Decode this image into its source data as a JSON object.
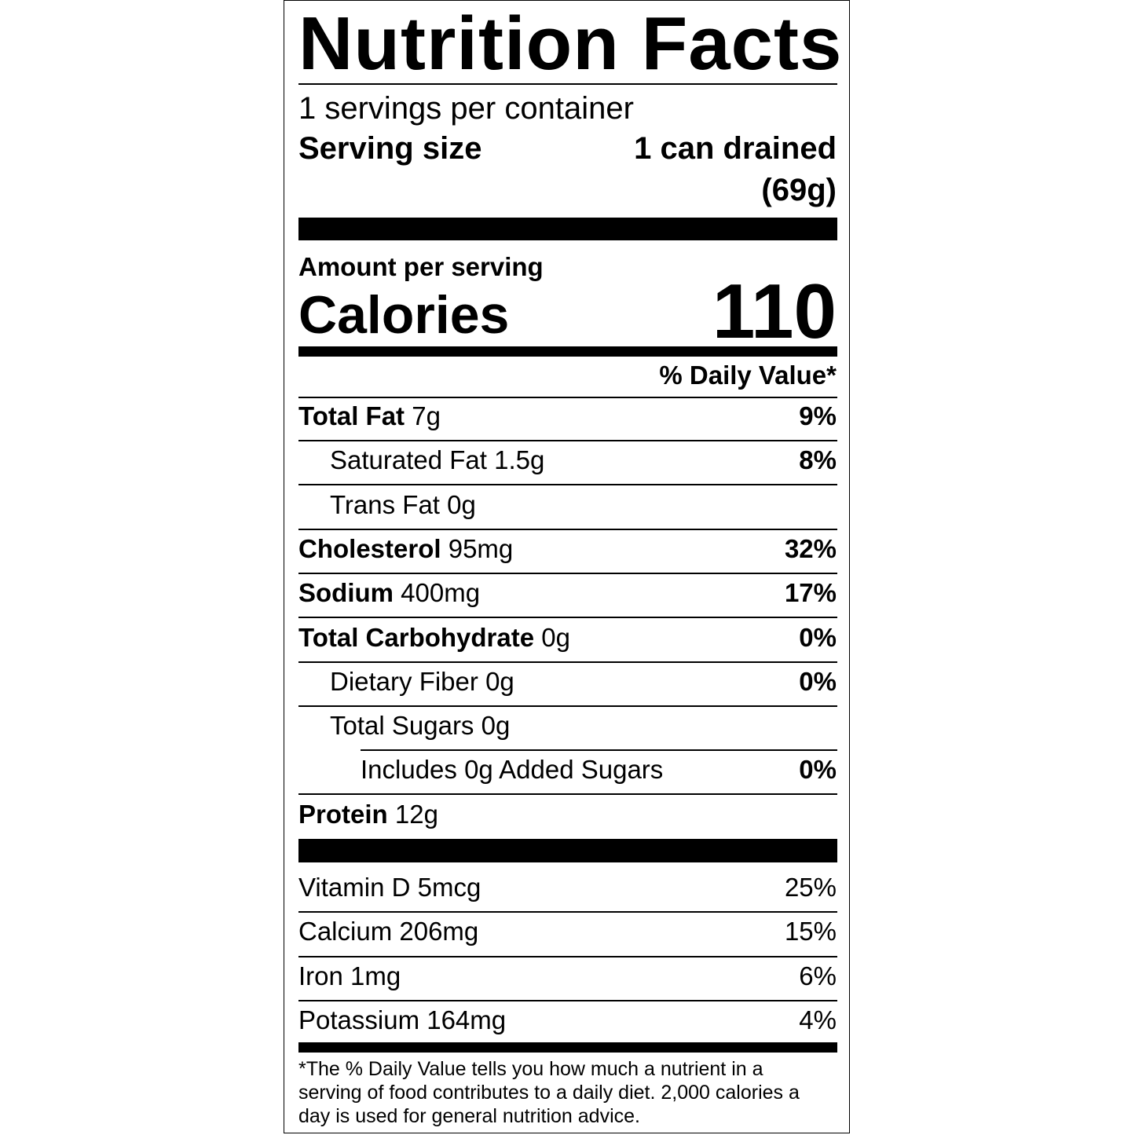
{
  "title": "Nutrition Facts",
  "servings_per_container": "1 servings per container",
  "serving_size": {
    "label": "Serving size",
    "value_line1": "1 can drained",
    "value_line2": "(69g)"
  },
  "amount_per_serving": "Amount per serving",
  "calories": {
    "label": "Calories",
    "value": "110"
  },
  "daily_value_header": "% Daily Value*",
  "nutrients": [
    {
      "name": "Total Fat",
      "amount": "7g",
      "dv": "9%"
    },
    {
      "name": "Saturated Fat",
      "amount": "1.5g",
      "dv": "8%"
    },
    {
      "name": "Trans Fat",
      "amount": "0g",
      "dv": ""
    },
    {
      "name": "Cholesterol",
      "amount": "95mg",
      "dv": "32%"
    },
    {
      "name": "Sodium",
      "amount": "400mg",
      "dv": "17%"
    },
    {
      "name": "Total Carbohydrate",
      "amount": "0g",
      "dv": "0%"
    },
    {
      "name": "Dietary Fiber",
      "amount": "0g",
      "dv": "0%"
    },
    {
      "name": "Total Sugars",
      "amount": "0g",
      "dv": ""
    },
    {
      "name": "Includes 0g Added Sugars",
      "amount": "",
      "dv": "0%"
    },
    {
      "name": "Protein",
      "amount": "12g",
      "dv": ""
    }
  ],
  "vitamins": [
    {
      "label": "Vitamin D 5mcg",
      "dv": "25%"
    },
    {
      "label": "Calcium 206mg",
      "dv": "15%"
    },
    {
      "label": "Iron 1mg",
      "dv": "6%"
    },
    {
      "label": "Potassium 164mg",
      "dv": "4%"
    }
  ],
  "footnote": [
    "*The % Daily Value tells you how much a nutrient in a",
    "serving of food contributes to a daily diet. 2,000 calories a",
    "day is used for general nutrition advice."
  ]
}
